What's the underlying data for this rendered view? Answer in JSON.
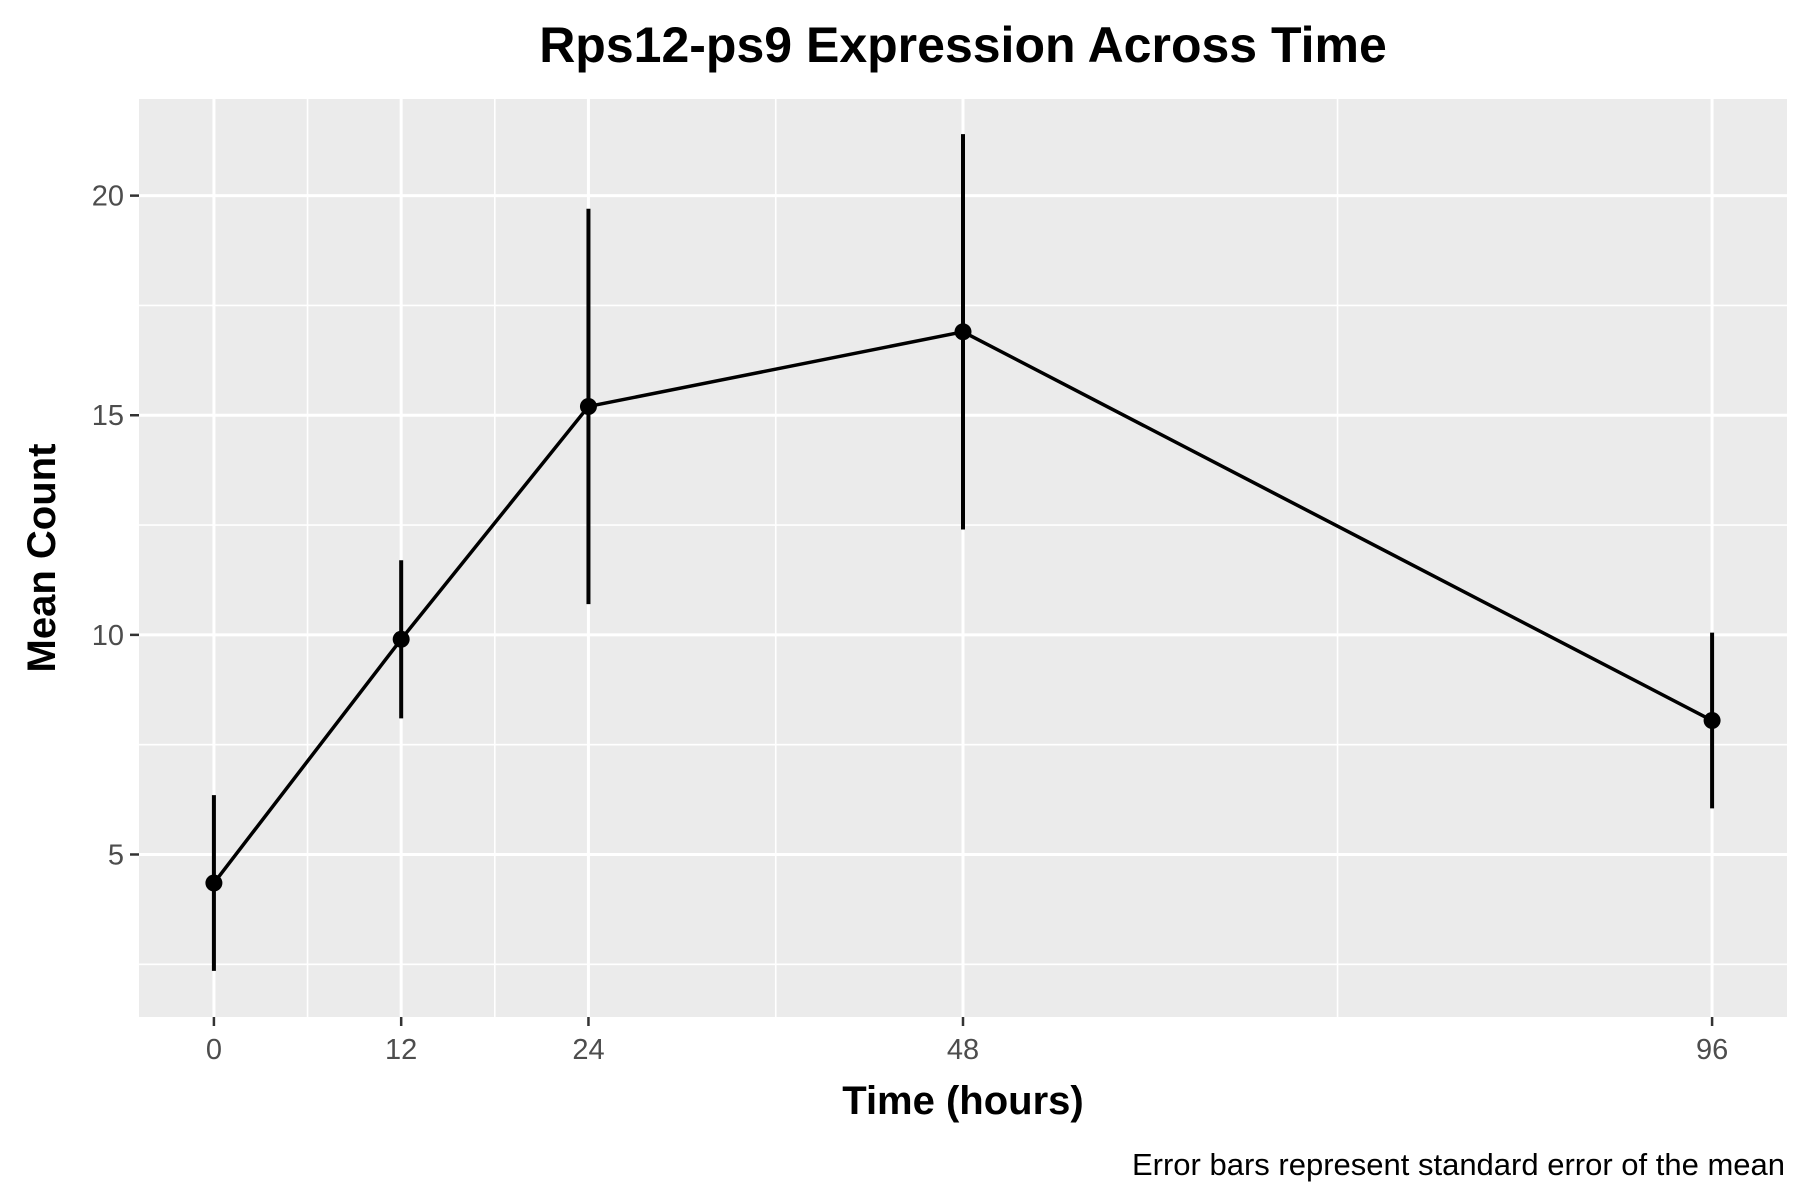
{
  "chart_data": {
    "type": "line",
    "title": "Rps12-ps9 Expression Across Time",
    "xlabel": "Time (hours)",
    "ylabel": "Mean Count",
    "caption": "Error bars represent standard error of the mean",
    "x_ticks": [
      0,
      12,
      24,
      48,
      96
    ],
    "x_tick_labels": [
      "0",
      "12",
      "24",
      "48",
      "96"
    ],
    "y_ticks": [
      5,
      10,
      15,
      20
    ],
    "y_tick_labels": [
      "5",
      "10",
      "15",
      "20"
    ],
    "xlim": [
      -4.8,
      100.8
    ],
    "ylim": [
      1.3,
      22.2
    ],
    "x_minor": [
      6,
      18,
      36,
      72
    ],
    "y_minor": [
      2.5,
      7.5,
      12.5,
      17.5
    ],
    "grid": true,
    "legend": "none",
    "series": [
      {
        "points": [
          {
            "x": 0,
            "y": 4.35,
            "ymin": 2.35,
            "ymax": 6.35
          },
          {
            "x": 12,
            "y": 9.9,
            "ymin": 8.1,
            "ymax": 11.7
          },
          {
            "x": 24,
            "y": 15.2,
            "ymin": 10.7,
            "ymax": 19.7
          },
          {
            "x": 48,
            "y": 16.9,
            "ymin": 12.4,
            "ymax": 21.4
          },
          {
            "x": 96,
            "y": 8.05,
            "ymin": 6.05,
            "ymax": 10.05
          }
        ]
      }
    ],
    "colors": {
      "panel_background": "#ebebeb",
      "grid": "#ffffff",
      "line": "#000000",
      "points": "#000000",
      "tick_text": "#4d4d4d",
      "tick_mark": "#333333"
    }
  }
}
